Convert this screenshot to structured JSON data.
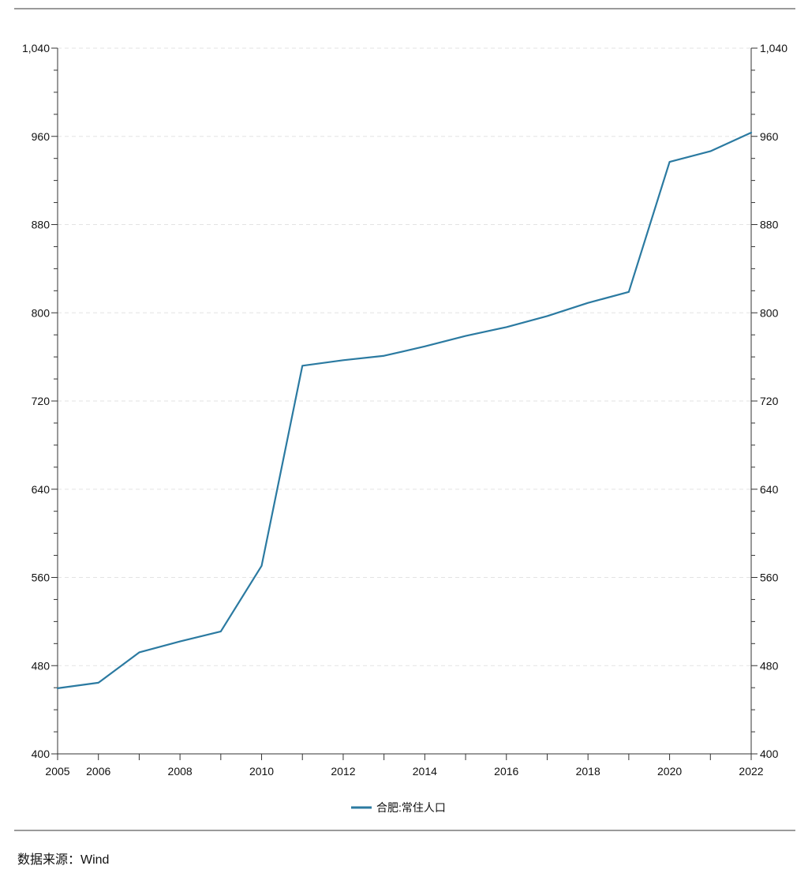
{
  "chart_data": {
    "type": "line",
    "title": "",
    "xlabel": "",
    "ylabel": "",
    "x": [
      2005,
      2006,
      2007,
      2008,
      2009,
      2010,
      2011,
      2012,
      2013,
      2014,
      2015,
      2016,
      2017,
      2018,
      2019,
      2020,
      2021,
      2022
    ],
    "series": [
      {
        "name": "合肥:常住人口",
        "color": "#2b7aa1",
        "values": [
          459.5,
          464.5,
          492,
          502,
          511,
          570.5,
          752,
          757,
          761,
          769.5,
          779,
          787,
          797,
          809,
          818.9,
          936.9,
          946.5,
          963.4
        ]
      }
    ],
    "ylim": [
      400,
      1040
    ],
    "xlim": [
      2005,
      2022
    ],
    "y_ticks": [
      400,
      480,
      560,
      640,
      720,
      800,
      880,
      960,
      1040
    ],
    "y_tick_labels": [
      "400",
      "480",
      "560",
      "640",
      "720",
      "800",
      "880",
      "960",
      "1,040"
    ],
    "x_ticks": [
      2005,
      2006,
      2008,
      2010,
      2012,
      2014,
      2016,
      2018,
      2020,
      2022
    ],
    "x_tick_labels": [
      "2005",
      "2006",
      "2008",
      "2010",
      "2012",
      "2014",
      "2016",
      "2018",
      "2020",
      "2022"
    ],
    "grid": true,
    "dual_y_axis": true,
    "legend_position": "bottom-center"
  },
  "footer": {
    "source": "数据来源：Wind"
  }
}
